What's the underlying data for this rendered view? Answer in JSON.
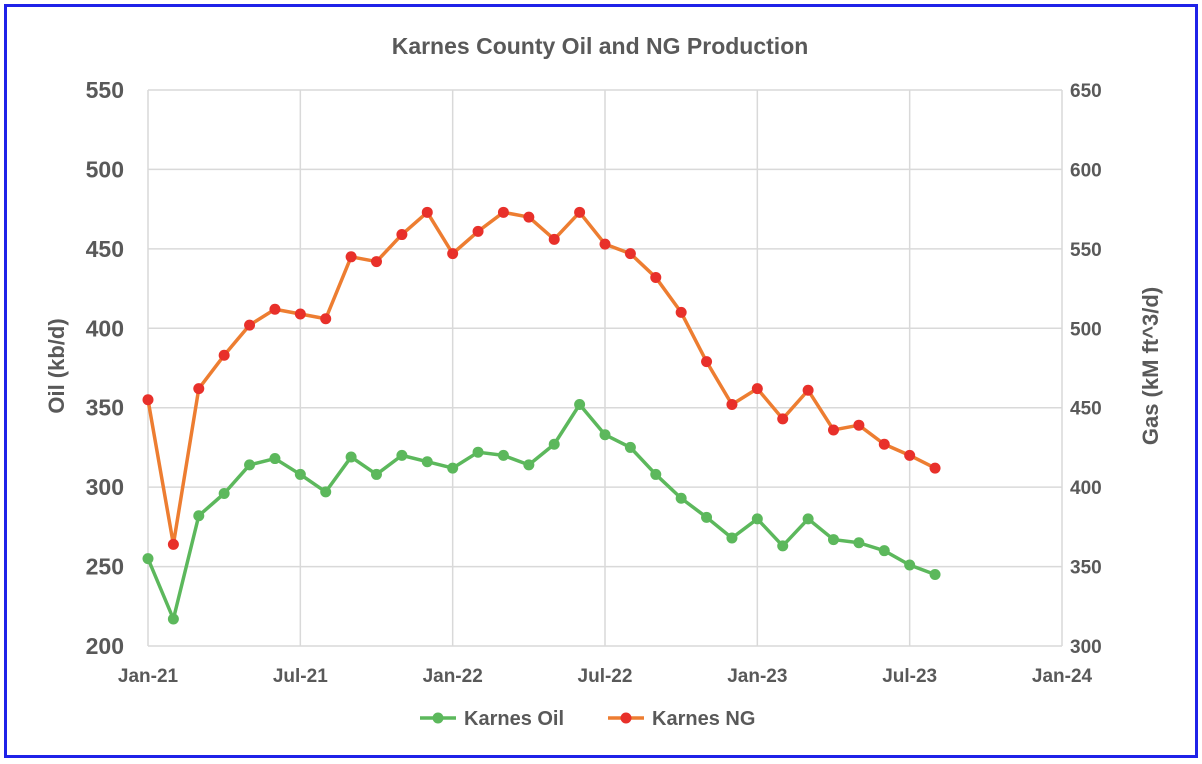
{
  "chart_data": {
    "type": "line",
    "title": "Karnes County Oil and NG Production",
    "ylabel": "Oil (kb/d)",
    "y2label": "Gas (kM ft^3/d)",
    "ylim": [
      200,
      550
    ],
    "y2lim": [
      300,
      650
    ],
    "yticks": [
      "200",
      "250",
      "300",
      "350",
      "400",
      "450",
      "500",
      "550"
    ],
    "y2ticks": [
      "300",
      "350",
      "400",
      "450",
      "500",
      "550",
      "600",
      "650"
    ],
    "xticks": [
      "Jan-21",
      "Jul-21",
      "Jan-22",
      "Jul-22",
      "Jan-23",
      "Jul-23",
      "Jan-24"
    ],
    "grid": true,
    "legend_position": "bottom",
    "x": [
      "2021-01",
      "2021-02",
      "2021-03",
      "2021-04",
      "2021-05",
      "2021-06",
      "2021-07",
      "2021-08",
      "2021-09",
      "2021-10",
      "2021-11",
      "2021-12",
      "2022-01",
      "2022-02",
      "2022-03",
      "2022-04",
      "2022-05",
      "2022-06",
      "2022-07",
      "2022-08",
      "2022-09",
      "2022-10",
      "2022-11",
      "2022-12",
      "2023-01",
      "2023-02",
      "2023-03",
      "2023-04",
      "2023-05",
      "2023-06",
      "2023-07",
      "2023-08"
    ],
    "series": [
      {
        "name": "Karnes Oil",
        "axis": "left",
        "color": "#5cb85c",
        "values": [
          255,
          217,
          282,
          296,
          314,
          318,
          308,
          297,
          319,
          308,
          320,
          316,
          312,
          322,
          320,
          314,
          327,
          352,
          333,
          325,
          308,
          293,
          281,
          268,
          280,
          263,
          280,
          267,
          265,
          260,
          251,
          245
        ]
      },
      {
        "name": "Karnes NG",
        "axis": "right",
        "color": "#ed7d31",
        "marker_color": "#e8302a",
        "values": [
          455,
          364,
          462,
          483,
          502,
          512,
          509,
          506,
          545,
          542,
          559,
          573,
          547,
          561,
          573,
          570,
          556,
          573,
          553,
          547,
          532,
          510,
          479,
          452,
          462,
          443,
          461,
          436,
          439,
          427,
          420,
          412
        ]
      }
    ]
  }
}
